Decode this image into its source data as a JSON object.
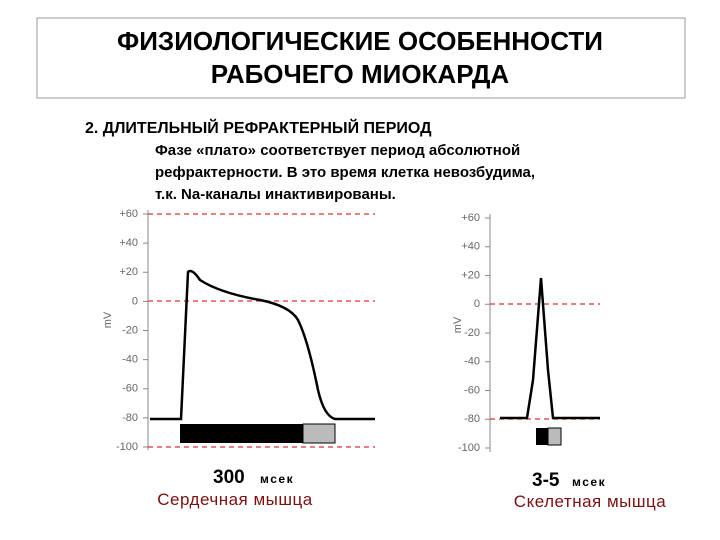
{
  "header": {
    "title_lines": [
      "ФИЗИОЛОГИЧЕСКИЕ ОСОБЕННОСТИ",
      "РАБОЧЕГО МИОКАРДА"
    ]
  },
  "section": {
    "heading": "2. ДЛИТЕЛЬНЫЙ РЕФРАКТЕРНЫЙ ПЕРИОД",
    "text_lines": [
      "Фазе «плато» соответствует период абсолютной",
      "рефрактерности. В это время клетка невозбудима,",
      "т.к.  Na-каналы инактивированы."
    ]
  },
  "plots": [
    {
      "axis_label": "mV",
      "ticks": [
        "+60",
        "+40",
        "+20",
        "0",
        "-20",
        "-40",
        "-60",
        "-80",
        "-100"
      ],
      "duration": "300",
      "unit": "мсек",
      "caption": "Сердечная мышца"
    },
    {
      "axis_label": "mV",
      "ticks": [
        "+60",
        "+40",
        "+20",
        "0",
        "-20",
        "-40",
        "-60",
        "-80",
        "-100"
      ],
      "duration": "3-5",
      "unit": "мсек",
      "caption": "Скелетная мышца"
    }
  ]
}
